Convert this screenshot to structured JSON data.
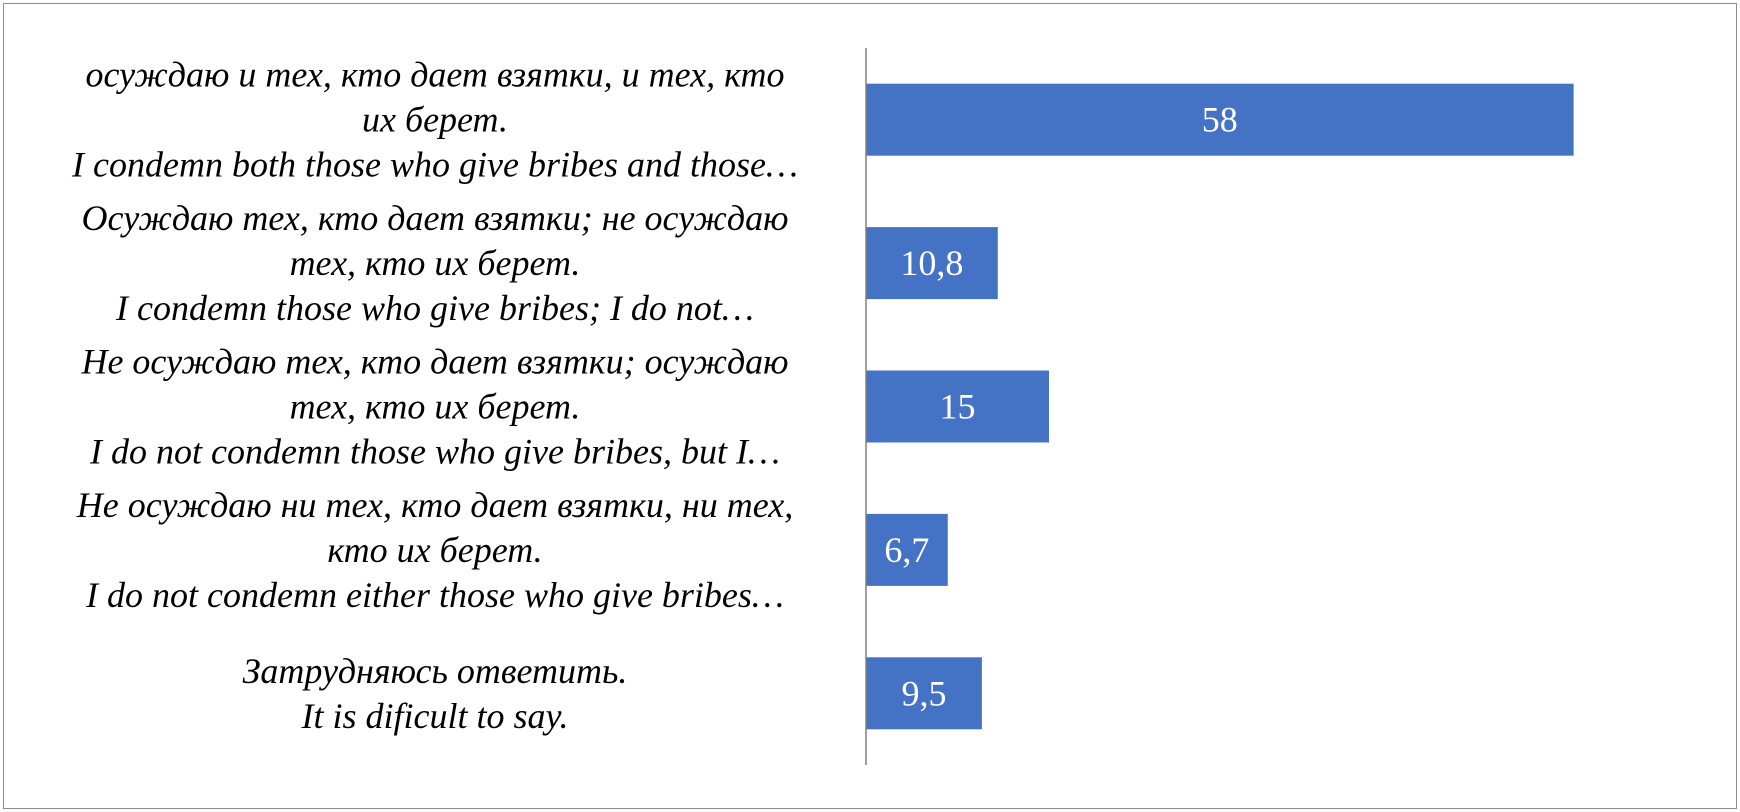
{
  "chart_data": {
    "type": "bar",
    "orientation": "horizontal",
    "title": "",
    "xlabel": "",
    "ylabel": "",
    "grid": false,
    "legend": "none",
    "categories": [
      [
        "осуждаю и тех, кто дает взятки, и тех, кто",
        "их берет.",
        "I condemn both those who give bribes and those…"
      ],
      [
        "Осуждаю тех, кто дает взятки; не осуждаю",
        "тех, кто их берет.",
        "I condemn those who give bribes; I do not…"
      ],
      [
        "Не осуждаю тех, кто дает взятки; осуждаю",
        "тех, кто их берет.",
        "I do not condemn those who give bribes, but I…"
      ],
      [
        "Не осуждаю ни тех, кто дает взятки, ни тех,",
        "кто их берет.",
        "I do not condemn either those who give bribes…"
      ],
      [
        "Затрудняюсь ответить.",
        "It is dificult to say."
      ]
    ],
    "values": [
      58,
      10.8,
      15,
      6.7,
      9.5
    ],
    "value_labels": [
      "58",
      "10,8",
      "15",
      "6,7",
      "9,5"
    ],
    "xlim": [
      0,
      70
    ],
    "bar_color": "#4472c4",
    "axis_color": "#808080"
  }
}
